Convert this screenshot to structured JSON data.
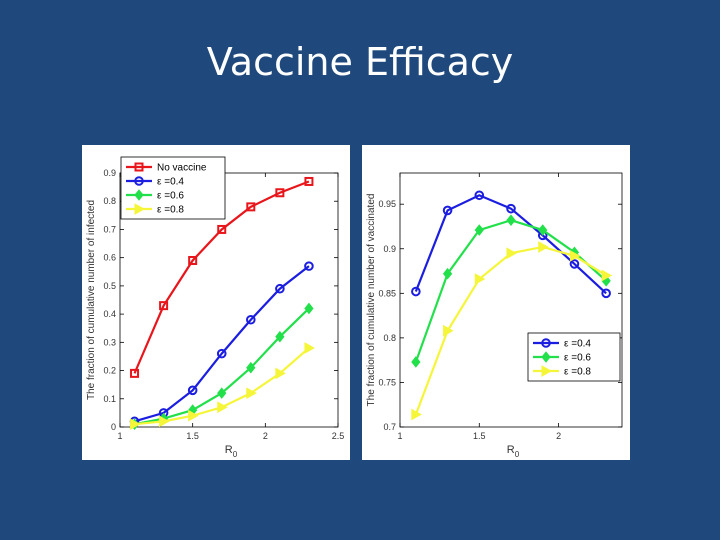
{
  "slide": {
    "title": "Vaccine Efficacy"
  },
  "colors": {
    "background": "#1f497d",
    "no_vaccine": "#e8161b",
    "eps04": "#1b1ee0",
    "eps06": "#22e04a",
    "eps08": "#f5f53a"
  },
  "chart_data": [
    {
      "type": "line",
      "xlabel": "R0",
      "ylabel": "The fraction of cumulative number of infected",
      "xlim": [
        1,
        2.5
      ],
      "ylim": [
        0,
        0.9
      ],
      "xticks": [
        "1",
        "1.5",
        "2",
        "2.5"
      ],
      "yticks": [
        "0",
        "0.1",
        "0.2",
        "0.3",
        "0.4",
        "0.5",
        "0.6",
        "0.7",
        "0.8",
        "0.9"
      ],
      "legend_position": "top-left",
      "x": [
        1.1,
        1.3,
        1.5,
        1.7,
        1.9,
        2.1,
        2.3
      ],
      "series": [
        {
          "name": "No vaccine",
          "marker": "square",
          "color": "#e8161b",
          "values": [
            0.19,
            0.43,
            0.59,
            0.7,
            0.78,
            0.83,
            0.87
          ]
        },
        {
          "name": "ε =0.4",
          "marker": "circle",
          "color": "#1b1ee0",
          "values": [
            0.02,
            0.05,
            0.13,
            0.26,
            0.38,
            0.49,
            0.57
          ]
        },
        {
          "name": "ε =0.6",
          "marker": "diamond",
          "color": "#22e04a",
          "values": [
            0.01,
            0.03,
            0.06,
            0.12,
            0.21,
            0.32,
            0.42
          ]
        },
        {
          "name": "ε =0.8",
          "marker": "triangle-right",
          "color": "#f5f53a",
          "values": [
            0.01,
            0.02,
            0.04,
            0.07,
            0.12,
            0.19,
            0.28
          ]
        }
      ]
    },
    {
      "type": "line",
      "xlabel": "R0",
      "ylabel": "The fraction of cumulative number of vaccinated",
      "xlim": [
        1,
        2.4
      ],
      "ylim": [
        0.7,
        0.985
      ],
      "xticks": [
        "1",
        "1.5",
        "2"
      ],
      "yticks": [
        "0.7",
        "0.75",
        "0.8",
        "0.85",
        "0.9",
        "0.95"
      ],
      "legend_position": "bottom-right",
      "x": [
        1.1,
        1.3,
        1.5,
        1.7,
        1.9,
        2.1,
        2.3
      ],
      "series": [
        {
          "name": "ε =0.4",
          "marker": "circle",
          "color": "#1b1ee0",
          "values": [
            0.852,
            0.943,
            0.96,
            0.945,
            0.915,
            0.883,
            0.85
          ]
        },
        {
          "name": "ε =0.6",
          "marker": "diamond",
          "color": "#22e04a",
          "values": [
            0.773,
            0.872,
            0.921,
            0.932,
            0.921,
            0.896,
            0.864
          ]
        },
        {
          "name": "ε =0.8",
          "marker": "triangle-right",
          "color": "#f5f53a",
          "values": [
            0.714,
            0.808,
            0.866,
            0.895,
            0.902,
            0.892,
            0.87
          ]
        }
      ]
    }
  ]
}
